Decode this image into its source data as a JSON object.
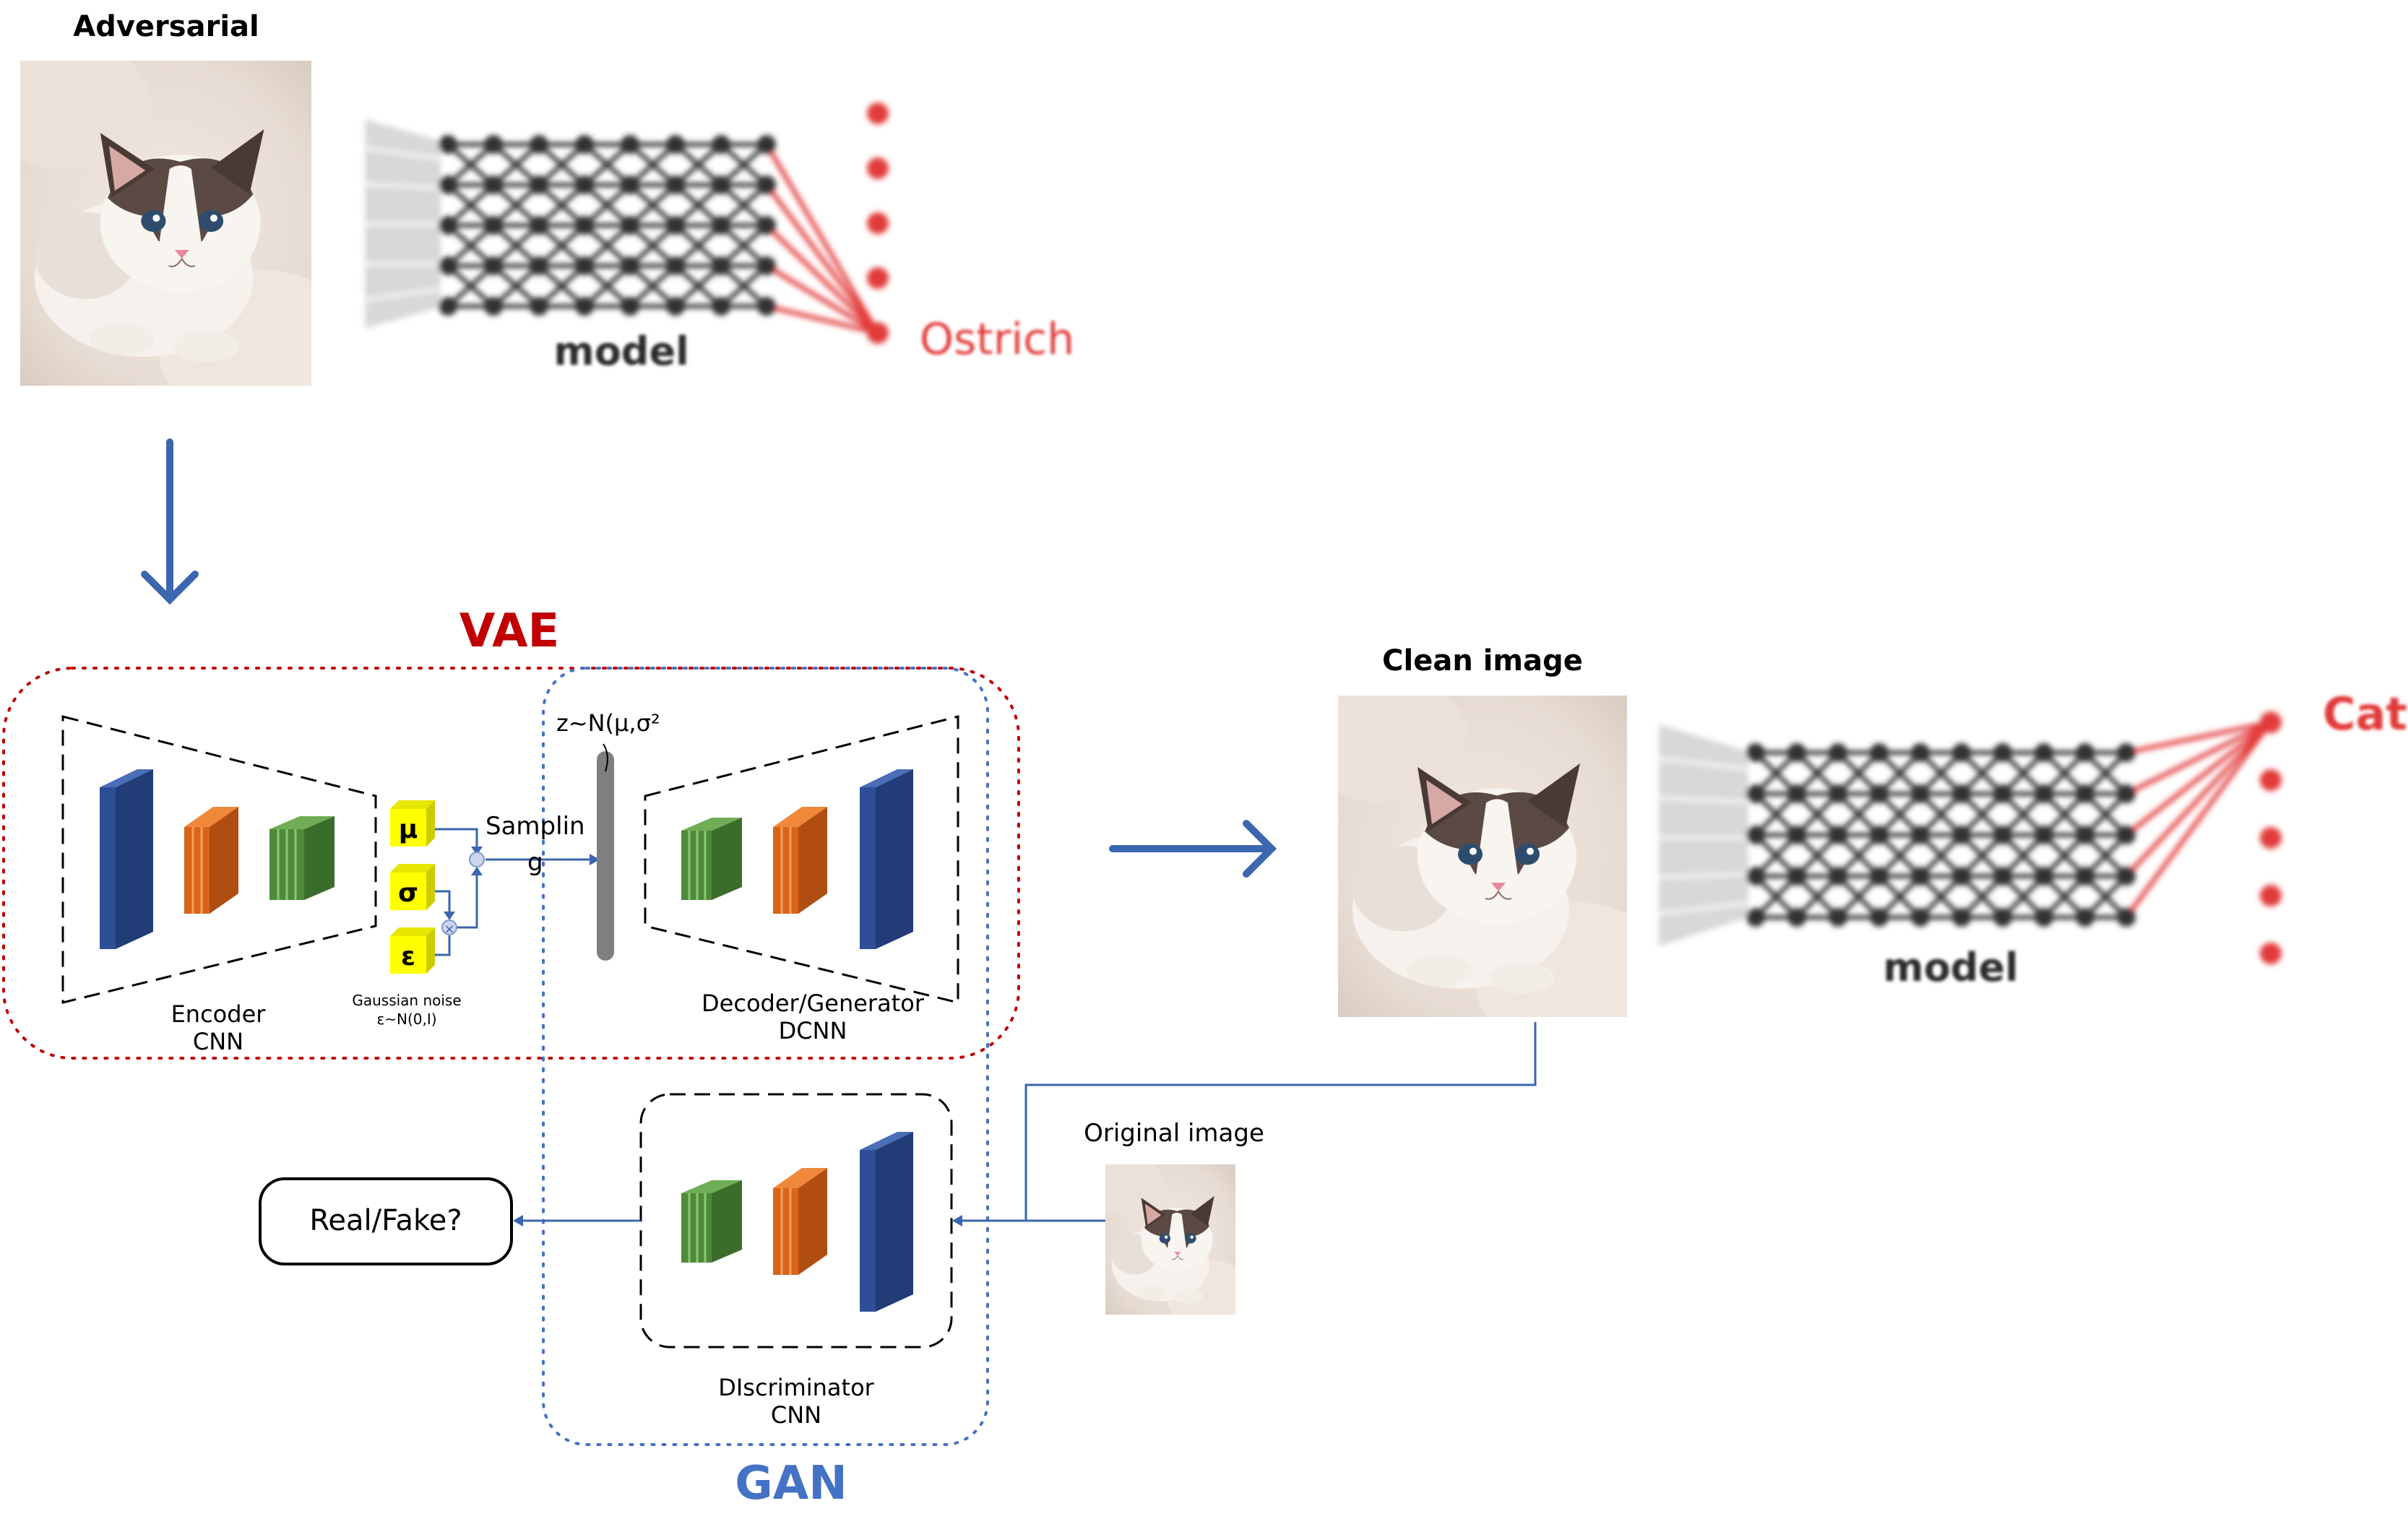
{
  "title": "Adversarial",
  "top_model_label": "model",
  "top_prediction": "Ostrich",
  "vae_label": "VAE",
  "gan_label": "GAN",
  "latent_label": "z~N(μ,σ²",
  "sampling_label_1": "Samplin",
  "sampling_label_2": "g",
  "mu_symbol": "μ",
  "sigma_symbol": "σ",
  "eps_symbol": "ε",
  "gaussian_noise_1": "Gaussian noise",
  "gaussian_noise_2": "ε~N(0,I)",
  "encoder_1": "Encoder",
  "encoder_2": "CNN",
  "decoder_1": "Decoder/Generator",
  "decoder_2": "DCNN",
  "discriminator_1": "DIscriminator",
  "discriminator_2": "CNN",
  "real_fake": "Real/Fake?",
  "clean_title": "Clean image",
  "bottom_model_label": "model",
  "bottom_prediction": "Cat",
  "original_label": "Original image",
  "colors": {
    "arrow_blue": "#3b66b0",
    "vae_red": "#c00000",
    "gan_blue": "#4472c4",
    "layer_blue": "#2e4f96",
    "layer_orange": "#d9641a",
    "layer_green": "#4f8a3a",
    "yellow_box": "#ffff00",
    "node_red": "#e23a3a",
    "node_dark": "#333333"
  }
}
